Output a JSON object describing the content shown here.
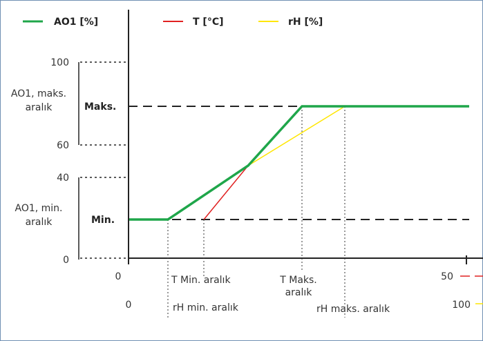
{
  "legend": {
    "ao1": "AO1 [%]",
    "t": "T [°C]",
    "rh": "rH [%]"
  },
  "y_axis": {
    "tick_100": "100",
    "tick_60": "60",
    "tick_40": "40",
    "tick_0": "0",
    "max_range_line1": "AO1, maks.",
    "max_range_line2": "aralık",
    "min_range_line1": "AO1, min.",
    "min_range_line2": "aralık",
    "max_label": "Maks.",
    "min_label": "Min."
  },
  "x_axis": {
    "t_zero": "0",
    "t_fifty": "50",
    "t_min_range": "T Min. aralık",
    "t_max_range_line1": "T Maks.",
    "t_max_range_line2": "aralık",
    "rh_zero": "0",
    "rh_hundred": "100",
    "rh_min_range": "rH min. aralık",
    "rh_max_range": "rH maks. aralık"
  },
  "colors": {
    "ao1": "#1fa64a",
    "t": "#e02020",
    "rh": "#ffe600",
    "axis": "#222222",
    "frame": "#6f8fb3"
  }
}
